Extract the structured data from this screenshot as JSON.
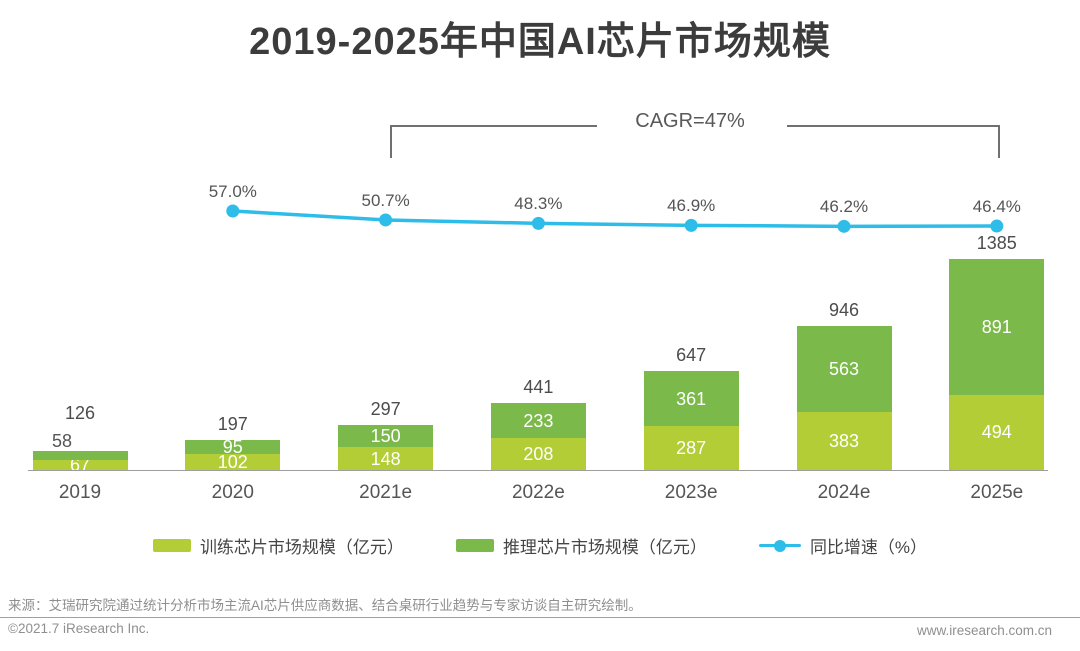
{
  "title": "2019-2025年中国AI芯片市场规模",
  "annotation": {
    "cagr": "CAGR=47%"
  },
  "chart_data": {
    "type": "bar",
    "subtype": "stacked-bar-with-growth-line",
    "title": "2019-2025年中国AI芯片市场规模",
    "categories": [
      "2019",
      "2020",
      "2021e",
      "2022e",
      "2023e",
      "2024e",
      "2025e"
    ],
    "series": [
      {
        "name": "训练芯片市场规模（亿元）",
        "type": "bar",
        "stack": "bottom",
        "color": "#b2cd35",
        "values": [
          67,
          102,
          148,
          208,
          287,
          383,
          494
        ]
      },
      {
        "name": "推理芯片市场规模（亿元）",
        "type": "bar",
        "stack": "top",
        "color": "#7bb94a",
        "values": [
          58,
          95,
          150,
          233,
          361,
          563,
          891
        ]
      },
      {
        "name": "同比增速（%）",
        "type": "line",
        "color": "#2dbde8",
        "values": [
          null,
          57.0,
          50.7,
          48.3,
          46.9,
          46.2,
          46.4
        ],
        "point_labels": [
          "",
          "57.0%",
          "50.7%",
          "48.3%",
          "46.9%",
          "46.2%",
          "46.4%"
        ]
      }
    ],
    "total_labels": [
      126,
      197,
      297,
      441,
      647,
      946,
      1385
    ],
    "annotations": [
      {
        "text": "CAGR=47%",
        "from": "2021e",
        "to": "2025e"
      }
    ],
    "legend_position": "bottom",
    "grid": false,
    "value_unit": "亿元"
  },
  "footer": {
    "source": "来源：艾瑞研究院通过统计分析市场主流AI芯片供应商数据、结合桌研行业趋势与专家访谈自主研究绘制。",
    "copyright": "©2021.7 iResearch Inc.",
    "website": "www.iresearch.com.cn"
  },
  "colors": {
    "train_green": "#b2cd35",
    "inference_green": "#7bb94a",
    "growth_blue": "#2dbde8",
    "title_dark": "#3c3c3c",
    "label_gray": "#555555",
    "footer_gray": "#8f8f8f"
  }
}
